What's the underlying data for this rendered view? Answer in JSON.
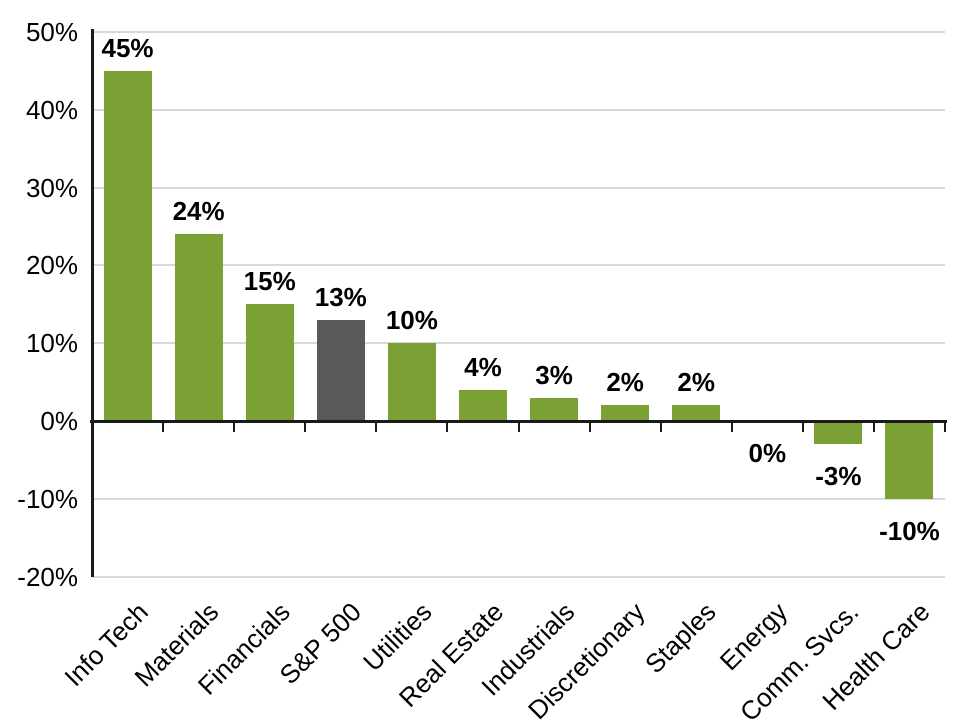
{
  "chart_data": {
    "type": "bar",
    "categories": [
      "Info Tech",
      "Materials",
      "Financials",
      "S&P 500",
      "Utilities",
      "Real Estate",
      "Industrials",
      "Discretionary",
      "Staples",
      "Energy",
      "Comm. Svcs.",
      "Health Care"
    ],
    "values": [
      45,
      24,
      15,
      13,
      10,
      4,
      3,
      2,
      2,
      0,
      -3,
      -10
    ],
    "data_labels": [
      "45%",
      "24%",
      "15%",
      "13%",
      "10%",
      "4%",
      "3%",
      "2%",
      "2%",
      "0%",
      "-3%",
      "-10%"
    ],
    "highlighted_category": "S&P 500",
    "title": "",
    "xlabel": "",
    "ylabel": "",
    "ylim": [
      -20,
      50
    ],
    "y_ticks": [
      "50%",
      "40%",
      "30%",
      "20%",
      "10%",
      "0%",
      "-10%",
      "-20%"
    ],
    "y_tick_values": [
      50,
      40,
      30,
      20,
      10,
      0,
      -10,
      -20
    ],
    "grid": true,
    "legend": false,
    "x_label_rotation_deg": -45,
    "colors": {
      "bar": "#7BA033",
      "highlight_bar": "#595959",
      "gridline": "#D9D9D9",
      "axis": "#1A1A1A",
      "label_text": "#000000"
    }
  }
}
